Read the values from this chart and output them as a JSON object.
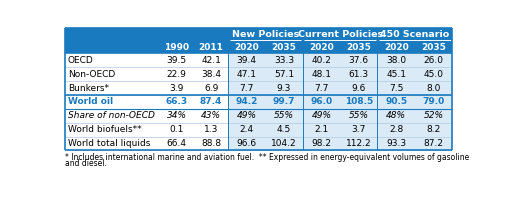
{
  "header_group1": "New Policies",
  "header_group2": "Current Policies",
  "header_group3": "450 Scenario",
  "col_headers": [
    "1990",
    "2011",
    "2020",
    "2035",
    "2020",
    "2035",
    "2020",
    "2035"
  ],
  "rows": [
    {
      "label": "OECD",
      "vals": [
        "39.5",
        "42.1",
        "39.4",
        "33.3",
        "40.2",
        "37.6",
        "38.0",
        "26.0"
      ],
      "bold": false,
      "blue": false,
      "italic": false
    },
    {
      "label": "Non-OECD",
      "vals": [
        "22.9",
        "38.4",
        "47.1",
        "57.1",
        "48.1",
        "61.3",
        "45.1",
        "45.0"
      ],
      "bold": false,
      "blue": false,
      "italic": false
    },
    {
      "label": "Bunkers*",
      "vals": [
        "3.9",
        "6.9",
        "7.7",
        "9.3",
        "7.7",
        "9.6",
        "7.5",
        "8.0"
      ],
      "bold": false,
      "blue": false,
      "italic": false
    },
    {
      "label": "World oil",
      "vals": [
        "66.3",
        "87.4",
        "94.2",
        "99.7",
        "96.0",
        "108.5",
        "90.5",
        "79.0"
      ],
      "bold": true,
      "blue": true,
      "italic": false
    },
    {
      "label": "Share of non-OECD",
      "vals": [
        "34%",
        "43%",
        "49%",
        "55%",
        "49%",
        "55%",
        "48%",
        "52%"
      ],
      "bold": false,
      "blue": false,
      "italic": true
    },
    {
      "label": "World biofuels**",
      "vals": [
        "0.1",
        "1.3",
        "2.4",
        "4.5",
        "2.1",
        "3.7",
        "2.8",
        "8.2"
      ],
      "bold": false,
      "blue": false,
      "italic": false
    },
    {
      "label": "World total liquids",
      "vals": [
        "66.4",
        "88.8",
        "96.6",
        "104.2",
        "98.2",
        "112.2",
        "93.3",
        "87.2"
      ],
      "bold": false,
      "blue": false,
      "italic": false
    }
  ],
  "footnote1": "* Includes international marine and aviation fuel.  ** Expressed in energy-equivalent volumes of gasoline",
  "footnote2": "and diesel.",
  "color_header_dark": "#1a7abf",
  "color_header_box": "#1e6ea0",
  "color_col_bg_light": "#daeaf6",
  "color_world_oil_text": "#1a7abf",
  "color_separator_light": "#b0c8e0",
  "color_separator_dark": "#1a7abf"
}
